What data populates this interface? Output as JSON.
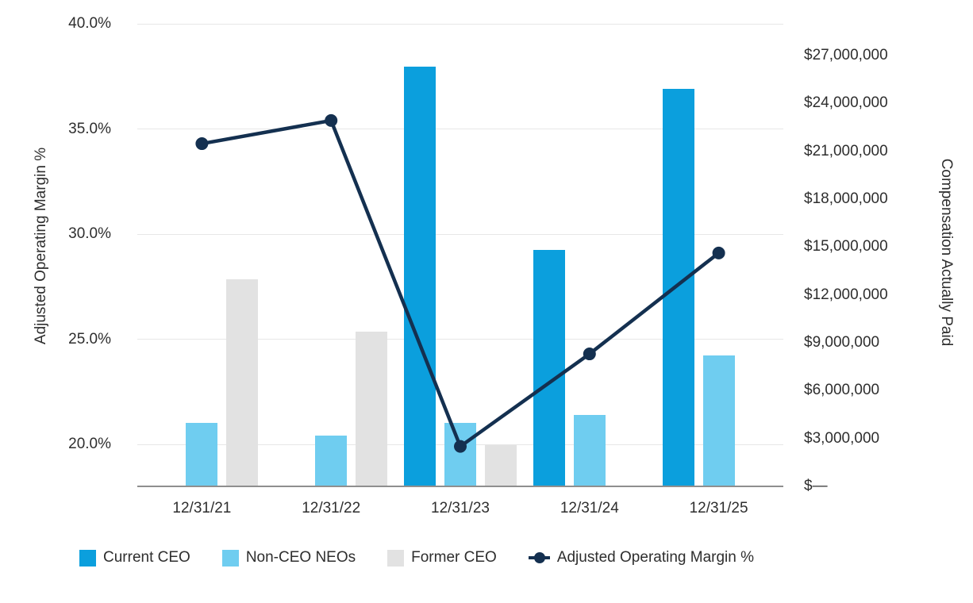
{
  "chart_data": {
    "type": "combo-bar-line",
    "categories": [
      "12/31/21",
      "12/31/22",
      "12/31/23",
      "12/31/24",
      "12/31/25"
    ],
    "bar_series": [
      {
        "name": "Current CEO",
        "color": "#0b9fdd",
        "values": [
          null,
          null,
          26300000,
          14800000,
          24900000
        ]
      },
      {
        "name": "Non-CEO NEOs",
        "color": "#6fcdf0",
        "values": [
          4000000,
          3200000,
          4000000,
          4500000,
          8200000
        ]
      },
      {
        "name": "Former CEO",
        "color": "#e2e2e2",
        "values": [
          13000000,
          9700000,
          2600000,
          null,
          null
        ]
      }
    ],
    "line_series": {
      "name": "Adjusted Operating Margin %",
      "color": "#143050",
      "values": [
        34.3,
        35.4,
        19.9,
        24.3,
        29.1
      ]
    },
    "left_axis": {
      "title": "Adjusted Operating Margin %",
      "tick_labels": [
        "40.0%",
        "35.0%",
        "30.0%",
        "25.0%",
        "20.0%"
      ],
      "tick_values": [
        40,
        35,
        30,
        25,
        20
      ],
      "min": 18,
      "max": 40
    },
    "right_axis": {
      "title": "Compensation Actually Paid",
      "tick_labels": [
        "$27,000,000",
        "$24,000,000",
        "$21,000,000",
        "$18,000,000",
        "$15,000,000",
        "$12,000,000",
        "$9,000,000",
        "$6,000,000",
        "$3,000,000",
        "$—"
      ],
      "tick_values": [
        27000000,
        24000000,
        21000000,
        18000000,
        15000000,
        12000000,
        9000000,
        6000000,
        3000000,
        0
      ],
      "min": 0
    },
    "legend": [
      "Current CEO",
      "Non-CEO NEOs",
      "Former CEO",
      "Adjusted Operating Margin %"
    ],
    "grid": "horizontal-only",
    "legend_position": "bottom"
  },
  "colors": {
    "gridline": "#e7e7e7",
    "axis_line": "#8f8f8f",
    "text": "#2e2e2e"
  }
}
